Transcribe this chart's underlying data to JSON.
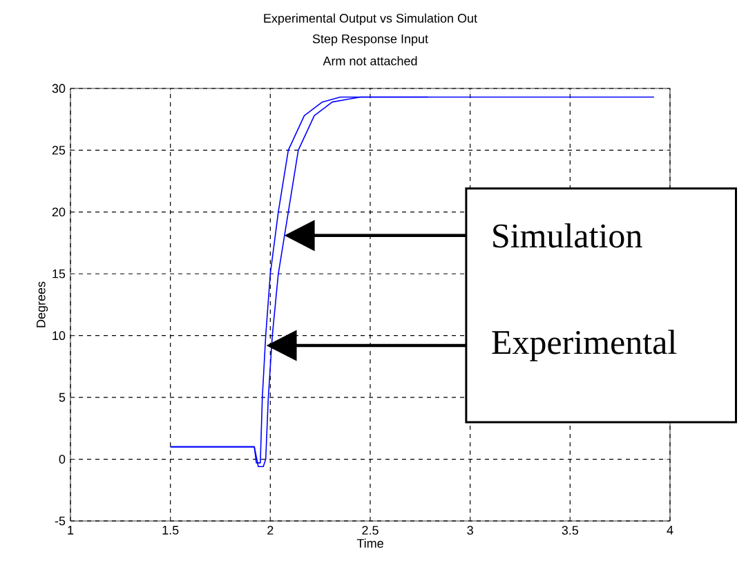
{
  "chart_data": {
    "type": "line",
    "title": "Experimental Output vs Simulation Out",
    "subtitle": "Step Response Input",
    "annotations": [
      "Arm not attached"
    ],
    "xlabel": "Time",
    "ylabel": "Degrees",
    "xlim": [
      1,
      4
    ],
    "xticks": [
      1,
      1.5,
      2,
      2.5,
      3,
      3.5,
      4
    ],
    "ylim": [
      -5,
      30
    ],
    "yticks": [
      -5,
      0,
      5,
      10,
      15,
      20,
      25,
      30
    ],
    "grid": true,
    "series": [
      {
        "name": "Simulation",
        "color": "#0000ff",
        "x": [
          1.5,
          1.92,
          1.94,
          1.965,
          1.977,
          1.99,
          2.01,
          2.04,
          2.09,
          2.14,
          2.22,
          2.31,
          2.45,
          3.92
        ],
        "values": [
          1.0,
          1.0,
          -0.6,
          -0.6,
          0,
          5,
          10,
          15,
          20,
          25,
          27.8,
          28.9,
          29.3,
          29.3
        ]
      },
      {
        "name": "Experimental",
        "color": "#0000ff",
        "x": [
          1.5,
          1.92,
          1.93,
          1.95,
          1.96,
          1.977,
          2.0,
          2.04,
          2.09,
          2.17,
          2.26,
          2.35,
          2.79
        ],
        "values": [
          1.0,
          1.0,
          -0.3,
          -0.3,
          5,
          10,
          15,
          20,
          25,
          27.8,
          28.9,
          29.3,
          29.3
        ]
      }
    ]
  }
}
